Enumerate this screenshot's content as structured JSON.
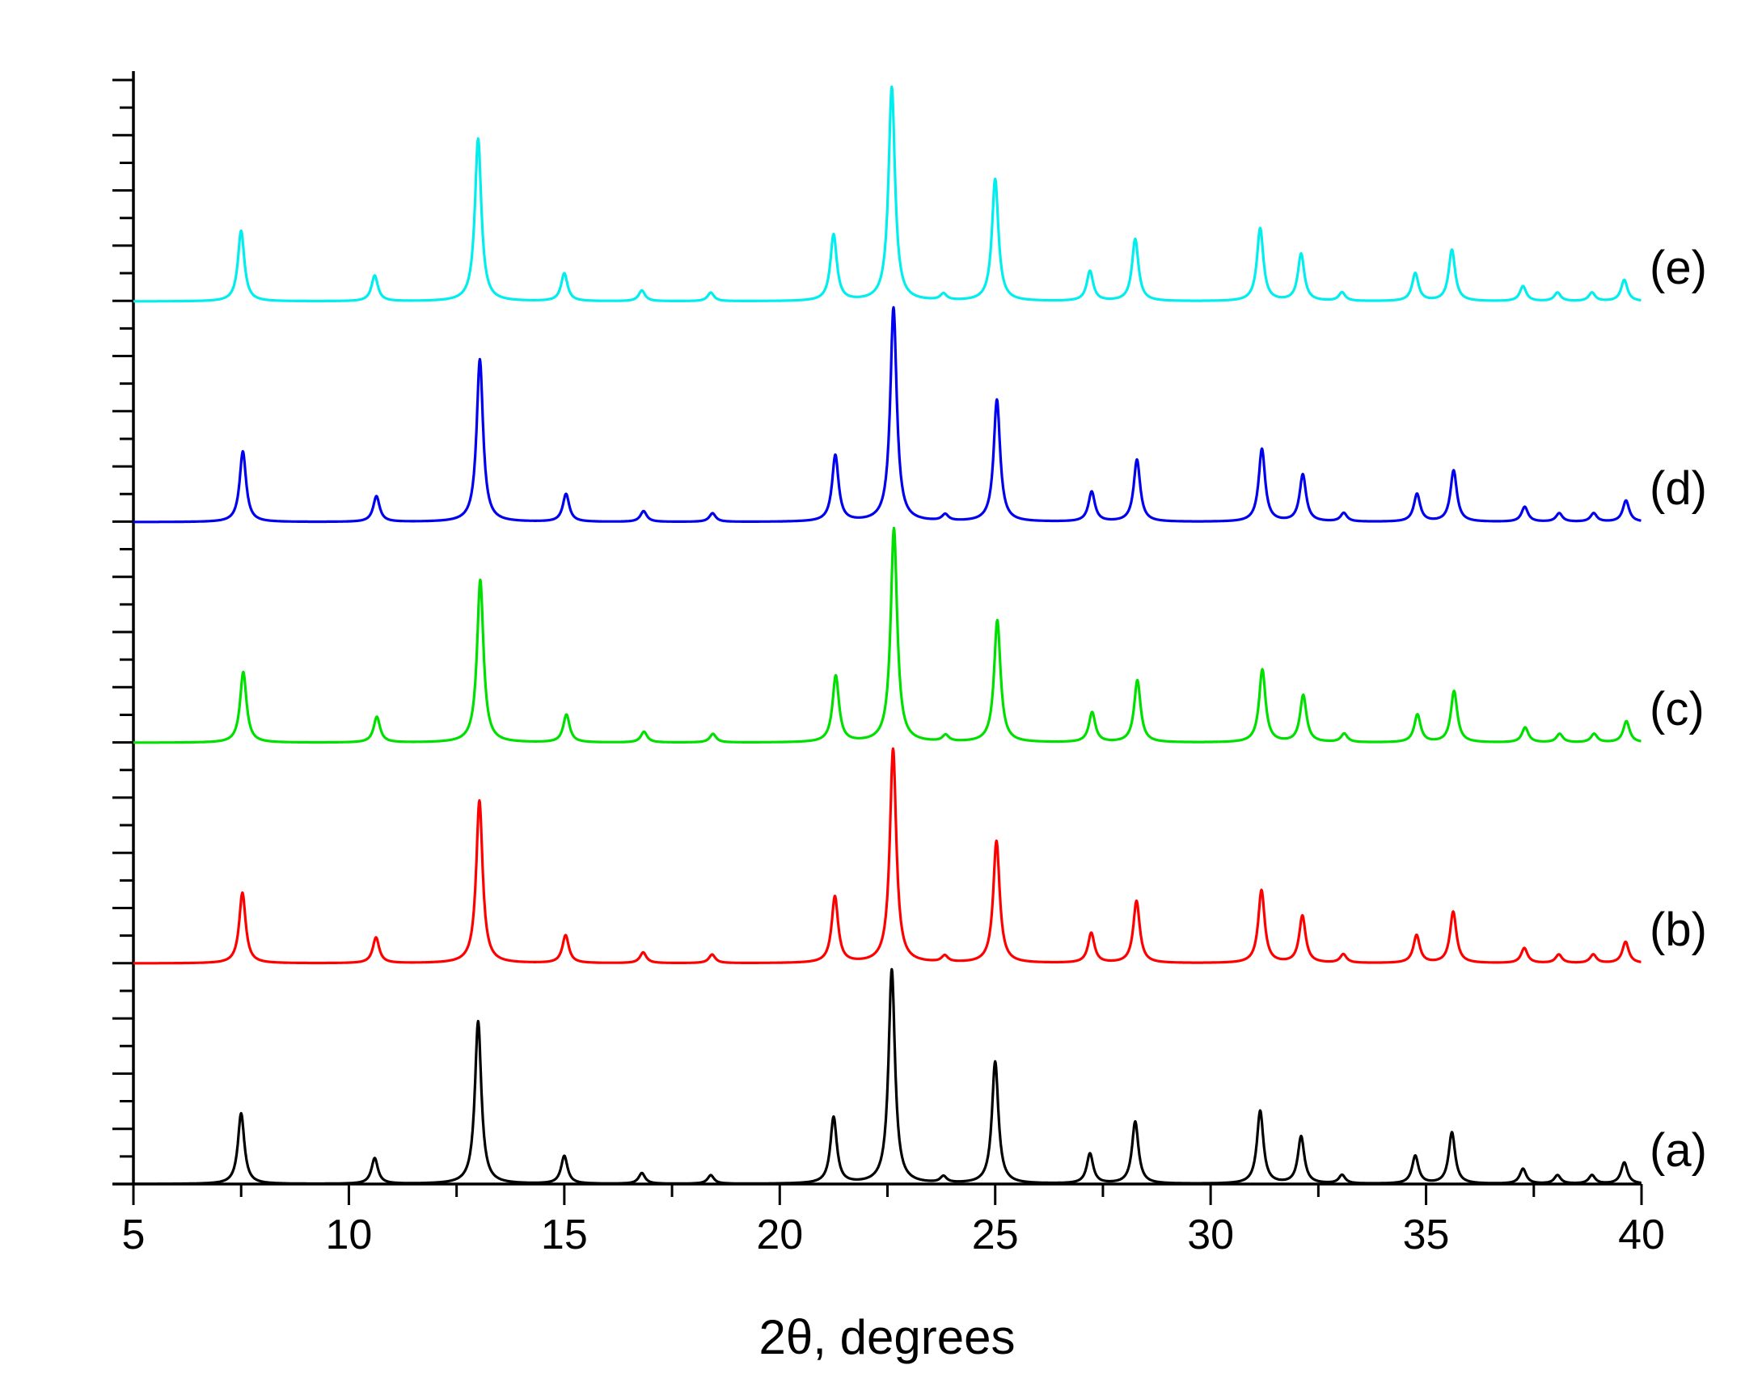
{
  "chart_data": {
    "type": "line",
    "xlabel": "2θ, degrees",
    "ylabel": "",
    "xlim": [
      5,
      40
    ],
    "x_ticks": [
      5,
      10,
      15,
      20,
      25,
      30,
      35,
      40
    ],
    "x_tick_labels": [
      "5",
      "10",
      "15",
      "20",
      "25",
      "30",
      "35",
      "40"
    ],
    "x_minor_step": 2.5,
    "y_ticks_visible": false,
    "grid": false,
    "stacked_offset": true,
    "peak_width": 0.09,
    "peaks": [
      {
        "x": 7.5,
        "y": 0.33
      },
      {
        "x": 10.6,
        "y": 0.12
      },
      {
        "x": 13.0,
        "y": 0.76
      },
      {
        "x": 15.0,
        "y": 0.13
      },
      {
        "x": 16.8,
        "y": 0.05
      },
      {
        "x": 18.4,
        "y": 0.04
      },
      {
        "x": 21.25,
        "y": 0.31
      },
      {
        "x": 22.6,
        "y": 1.0
      },
      {
        "x": 23.8,
        "y": 0.03
      },
      {
        "x": 25.0,
        "y": 0.57
      },
      {
        "x": 27.2,
        "y": 0.14
      },
      {
        "x": 28.25,
        "y": 0.29
      },
      {
        "x": 31.15,
        "y": 0.34
      },
      {
        "x": 32.1,
        "y": 0.22
      },
      {
        "x": 33.05,
        "y": 0.04
      },
      {
        "x": 34.75,
        "y": 0.13
      },
      {
        "x": 35.6,
        "y": 0.24
      },
      {
        "x": 37.25,
        "y": 0.07
      },
      {
        "x": 38.05,
        "y": 0.04
      },
      {
        "x": 38.85,
        "y": 0.04
      },
      {
        "x": 39.6,
        "y": 0.1
      }
    ],
    "series": [
      {
        "label": "(a)",
        "color": "#000000",
        "x_shift": 0.0
      },
      {
        "label": "(b)",
        "color": "#ff0000",
        "x_shift": 0.03
      },
      {
        "label": "(c)",
        "color": "#00e000",
        "x_shift": 0.05
      },
      {
        "label": "(d)",
        "color": "#0000ee",
        "x_shift": 0.04
      },
      {
        "label": "(e)",
        "color": "#00eeee",
        "x_shift": 0.0
      }
    ]
  }
}
